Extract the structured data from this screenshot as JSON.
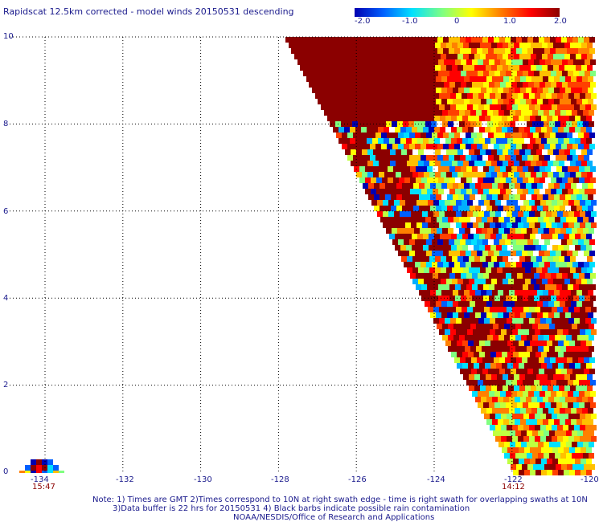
{
  "title": "Rapidscat 12.5km corrected - model winds 20150531 descending",
  "colorbar": {
    "ticks": [
      "-2.0",
      "-1.0",
      "0",
      "1.0",
      "2.0"
    ],
    "colors": [
      "#0000b0",
      "#0060ff",
      "#00e0ff",
      "#80ff80",
      "#ffff00",
      "#ff8000",
      "#ff0000",
      "#8b0000"
    ]
  },
  "map": {
    "lat_labels": [
      "10",
      "8",
      "6",
      "4",
      "2",
      "0"
    ],
    "lon_labels": [
      "-134",
      "-132",
      "-130",
      "-128",
      "-126",
      "-124",
      "-122",
      "-120"
    ],
    "lat_range": [
      0,
      10
    ],
    "lon_range": [
      -134.8,
      -119.8
    ],
    "swath_times": [
      {
        "label": "15:47",
        "lon": -134
      },
      {
        "label": "14:12",
        "lon": -122
      }
    ],
    "swath_color_low": "#0000b0",
    "swath_color_high": "#8b0000"
  },
  "notes": [
    "Note: 1) Times are GMT 2)Times correspond to 10N at right swath edge - time is right swath for overlapping swaths at 10N",
    "3)Data buffer is 22 hrs for 20150531 4) Black barbs indicate possible rain contamination",
    "NOAA/NESDIS/Office of Research and Applications"
  ]
}
